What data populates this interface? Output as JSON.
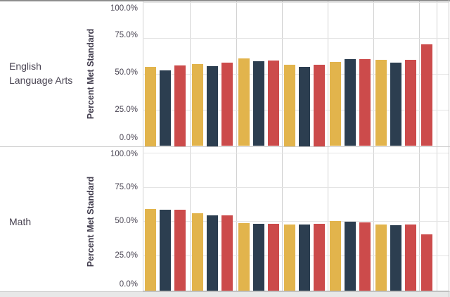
{
  "left_labels": {
    "row1_line1": "English",
    "row1_line2": "Language Arts",
    "row2": "Math"
  },
  "y_axis": {
    "title": "Percent Met Standard",
    "ticks": [
      "100.0%",
      "75.0%",
      "50.0%",
      "25.0%",
      "0.0%"
    ]
  },
  "palette": {
    "gold": "#E2B44C",
    "navy": "#2C3E50",
    "red": "#CC4B4B"
  },
  "chart_data": [
    {
      "type": "bar",
      "row_label": "English Language Arts",
      "ylabel": "Percent Met Standard",
      "ylim": [
        0,
        100
      ],
      "ytick_values": [
        100,
        75,
        50,
        25,
        0
      ],
      "grid": true,
      "legend": "none visible",
      "x_tick_labels": "none visible (cropped)",
      "groups": [
        {
          "bars": [
            {
              "series": "gold",
              "value": 55
            },
            {
              "series": "navy",
              "value": 52.5
            },
            {
              "series": "red",
              "value": 56
            }
          ]
        },
        {
          "bars": [
            {
              "series": "gold",
              "value": 57
            },
            {
              "series": "navy",
              "value": 55.5
            },
            {
              "series": "red",
              "value": 58
            }
          ]
        },
        {
          "bars": [
            {
              "series": "gold",
              "value": 61
            },
            {
              "series": "navy",
              "value": 59
            },
            {
              "series": "red",
              "value": 59.5
            }
          ]
        },
        {
          "bars": [
            {
              "series": "gold",
              "value": 56.5
            },
            {
              "series": "navy",
              "value": 55
            },
            {
              "series": "red",
              "value": 56.5
            }
          ]
        },
        {
          "bars": [
            {
              "series": "gold",
              "value": 58.5
            },
            {
              "series": "navy",
              "value": 60.5
            },
            {
              "series": "red",
              "value": 60.5
            }
          ]
        },
        {
          "bars": [
            {
              "series": "gold",
              "value": 60
            },
            {
              "series": "navy",
              "value": 58
            },
            {
              "series": "red",
              "value": 60
            }
          ]
        },
        {
          "bars": [
            {
              "series": "red",
              "value": 70.5
            }
          ]
        }
      ]
    },
    {
      "type": "bar",
      "row_label": "Math",
      "ylabel": "Percent Met Standard",
      "ylim": [
        0,
        100
      ],
      "ytick_values": [
        100,
        75,
        50,
        25,
        0
      ],
      "grid": true,
      "legend": "none visible",
      "x_tick_labels": "none visible (cropped)",
      "groups": [
        {
          "bars": [
            {
              "series": "gold",
              "value": 59
            },
            {
              "series": "navy",
              "value": 58.5
            },
            {
              "series": "red",
              "value": 58.5
            }
          ]
        },
        {
          "bars": [
            {
              "series": "gold",
              "value": 56
            },
            {
              "series": "navy",
              "value": 54.5
            },
            {
              "series": "red",
              "value": 54.5
            }
          ]
        },
        {
          "bars": [
            {
              "series": "gold",
              "value": 49
            },
            {
              "series": "navy",
              "value": 48.5
            },
            {
              "series": "red",
              "value": 48.5
            }
          ]
        },
        {
          "bars": [
            {
              "series": "gold",
              "value": 48
            },
            {
              "series": "navy",
              "value": 48
            },
            {
              "series": "red",
              "value": 48.5
            }
          ]
        },
        {
          "bars": [
            {
              "series": "gold",
              "value": 50.5
            },
            {
              "series": "navy",
              "value": 50
            },
            {
              "series": "red",
              "value": 49.5
            }
          ]
        },
        {
          "bars": [
            {
              "series": "gold",
              "value": 48
            },
            {
              "series": "navy",
              "value": 47.5
            },
            {
              "series": "red",
              "value": 48
            }
          ]
        },
        {
          "bars": [
            {
              "series": "red",
              "value": 41
            }
          ]
        }
      ]
    }
  ]
}
